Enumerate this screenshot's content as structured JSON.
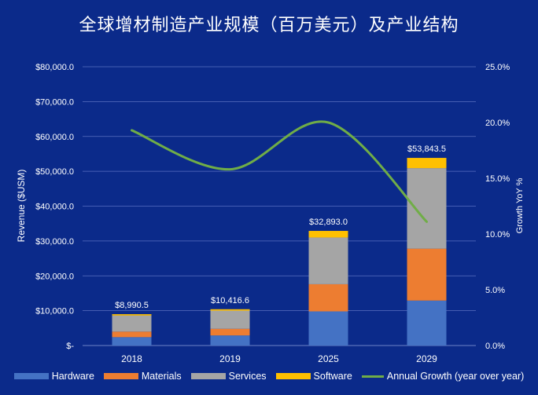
{
  "chart_data": {
    "type": "bar",
    "title": "全球增材制造产业规模（百万美元）及产业结构",
    "categories": [
      "2018",
      "2019",
      "2025",
      "2029"
    ],
    "stacked": true,
    "series": [
      {
        "name": "Hardware",
        "color": "#4472c4",
        "values": [
          2400,
          2900,
          9800,
          12900
        ]
      },
      {
        "name": "Materials",
        "color": "#ed7d31",
        "values": [
          1600,
          1900,
          7800,
          14900
        ]
      },
      {
        "name": "Services",
        "color": "#a5a5a5",
        "values": [
          4600,
          5200,
          13400,
          23100
        ]
      },
      {
        "name": "Software",
        "color": "#ffc000",
        "values": [
          390,
          417,
          1893,
          2944
        ]
      }
    ],
    "totals": [
      "$8,990.5",
      "$10,416.6",
      "$32,893.0",
      "$53,843.5"
    ],
    "line_series": {
      "name": "Annual Growth (year over year)",
      "color": "#70ad47",
      "values": [
        19.3,
        15.8,
        20.0,
        11.1
      ],
      "axis": "right"
    },
    "ylabel": "Revenue  ($USM)",
    "y2label": "Growth YoY %",
    "ylim": [
      0,
      80000
    ],
    "y2lim": [
      0,
      25
    ],
    "yticks": [
      "$-",
      "$10,000.0",
      "$20,000.0",
      "$30,000.0",
      "$40,000.0",
      "$50,000.0",
      "$60,000.0",
      "$70,000.0",
      "$80,000.0"
    ],
    "y2ticks": [
      "0.0%",
      "5.0%",
      "10.0%",
      "15.0%",
      "20.0%",
      "25.0%"
    ],
    "grid": true,
    "legend": "bottom"
  }
}
